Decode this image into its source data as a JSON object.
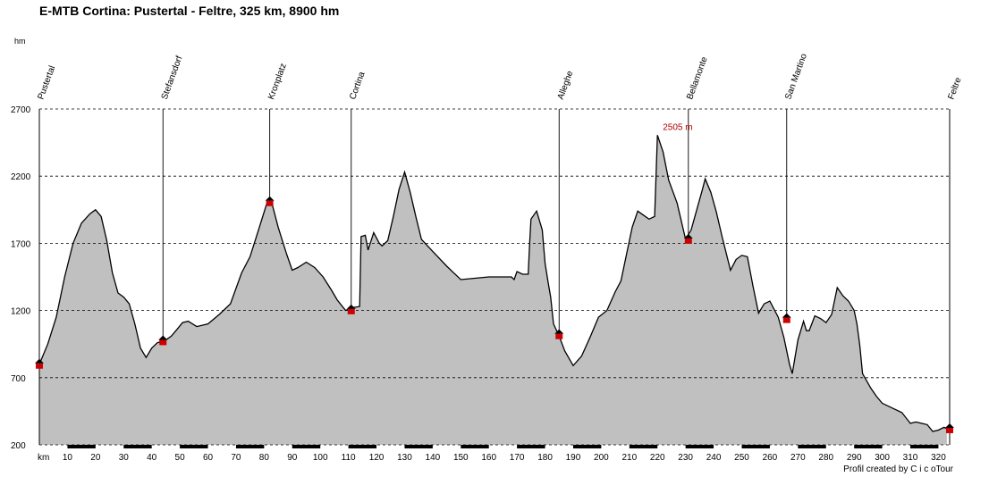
{
  "title": "E-MTB Cortina: Pustertal - Feltre, 325 km, 8900 hm",
  "credit": "Profil created by C i c oTour",
  "peak_label": "2505 m",
  "colors": {
    "fill": "#c0c0c0",
    "line": "#000000",
    "marker": "#cc0000",
    "peak_text": "#aa0000",
    "grid": "#000000"
  },
  "chart_data": {
    "type": "area",
    "title": "E-MTB Cortina: Pustertal - Feltre, 325 km, 8900 hm",
    "xlabel": "km",
    "ylabel": "hm",
    "xlim": [
      0,
      324
    ],
    "ylim": [
      200,
      2700
    ],
    "yticks": [
      200,
      700,
      1200,
      1700,
      2200,
      2700
    ],
    "xticks": [
      10,
      20,
      30,
      40,
      50,
      60,
      70,
      80,
      90,
      100,
      110,
      120,
      130,
      140,
      150,
      160,
      170,
      180,
      190,
      200,
      210,
      220,
      230,
      240,
      250,
      260,
      270,
      280,
      290,
      300,
      310,
      320
    ],
    "grid": "horizontal dashed",
    "profile": [
      [
        0,
        800
      ],
      [
        3,
        950
      ],
      [
        6,
        1150
      ],
      [
        9,
        1450
      ],
      [
        12,
        1700
      ],
      [
        15,
        1850
      ],
      [
        18,
        1920
      ],
      [
        20,
        1950
      ],
      [
        22,
        1900
      ],
      [
        24,
        1720
      ],
      [
        26,
        1480
      ],
      [
        28,
        1330
      ],
      [
        30,
        1300
      ],
      [
        32,
        1250
      ],
      [
        34,
        1100
      ],
      [
        36,
        920
      ],
      [
        38,
        850
      ],
      [
        40,
        920
      ],
      [
        42,
        960
      ],
      [
        45,
        980
      ],
      [
        47,
        1010
      ],
      [
        49,
        1060
      ],
      [
        51,
        1110
      ],
      [
        53,
        1120
      ],
      [
        56,
        1080
      ],
      [
        60,
        1100
      ],
      [
        64,
        1170
      ],
      [
        68,
        1250
      ],
      [
        72,
        1480
      ],
      [
        75,
        1600
      ],
      [
        78,
        1800
      ],
      [
        81,
        2000
      ],
      [
        83,
        1980
      ],
      [
        85,
        1820
      ],
      [
        88,
        1620
      ],
      [
        90,
        1500
      ],
      [
        92,
        1520
      ],
      [
        95,
        1560
      ],
      [
        98,
        1520
      ],
      [
        101,
        1450
      ],
      [
        104,
        1350
      ],
      [
        106,
        1280
      ],
      [
        109,
        1200
      ],
      [
        111,
        1220
      ],
      [
        114,
        1230
      ],
      [
        114.5,
        1750
      ],
      [
        116,
        1760
      ],
      [
        117,
        1650
      ],
      [
        119,
        1780
      ],
      [
        121,
        1700
      ],
      [
        122,
        1680
      ],
      [
        124,
        1720
      ],
      [
        126,
        1900
      ],
      [
        128,
        2100
      ],
      [
        130,
        2230
      ],
      [
        132,
        2080
      ],
      [
        134,
        1900
      ],
      [
        136,
        1730
      ],
      [
        140,
        1640
      ],
      [
        145,
        1530
      ],
      [
        150,
        1430
      ],
      [
        155,
        1440
      ],
      [
        160,
        1450
      ],
      [
        168,
        1450
      ],
      [
        169,
        1430
      ],
      [
        170,
        1490
      ],
      [
        172,
        1470
      ],
      [
        174,
        1470
      ],
      [
        174.5,
        1700
      ],
      [
        175,
        1880
      ],
      [
        177,
        1940
      ],
      [
        179,
        1800
      ],
      [
        180,
        1550
      ],
      [
        181,
        1420
      ],
      [
        182,
        1300
      ],
      [
        183,
        1100
      ],
      [
        185,
        1010
      ],
      [
        187,
        900
      ],
      [
        190,
        790
      ],
      [
        193,
        860
      ],
      [
        196,
        1000
      ],
      [
        199,
        1150
      ],
      [
        202,
        1200
      ],
      [
        205,
        1340
      ],
      [
        207,
        1420
      ],
      [
        209,
        1620
      ],
      [
        211,
        1820
      ],
      [
        213,
        1940
      ],
      [
        215,
        1910
      ],
      [
        217,
        1880
      ],
      [
        219,
        1900
      ],
      [
        220,
        2505
      ],
      [
        222,
        2380
      ],
      [
        224,
        2170
      ],
      [
        227,
        2000
      ],
      [
        230,
        1730
      ],
      [
        232,
        1800
      ],
      [
        234,
        1950
      ],
      [
        236,
        2100
      ],
      [
        237,
        2180
      ],
      [
        239,
        2080
      ],
      [
        241,
        1930
      ],
      [
        243,
        1750
      ],
      [
        246,
        1500
      ],
      [
        248,
        1580
      ],
      [
        250,
        1610
      ],
      [
        252,
        1600
      ],
      [
        254,
        1380
      ],
      [
        256,
        1180
      ],
      [
        258,
        1250
      ],
      [
        260,
        1270
      ],
      [
        263,
        1150
      ],
      [
        265,
        1000
      ],
      [
        267,
        800
      ],
      [
        268,
        730
      ],
      [
        270,
        980
      ],
      [
        272,
        1120
      ],
      [
        273,
        1050
      ],
      [
        274,
        1050
      ],
      [
        276,
        1160
      ],
      [
        278,
        1140
      ],
      [
        280,
        1110
      ],
      [
        282,
        1170
      ],
      [
        284,
        1370
      ],
      [
        286,
        1310
      ],
      [
        288,
        1270
      ],
      [
        290,
        1200
      ],
      [
        291,
        1100
      ],
      [
        292,
        940
      ],
      [
        293,
        730
      ],
      [
        296,
        620
      ],
      [
        298,
        560
      ],
      [
        300,
        510
      ],
      [
        304,
        470
      ],
      [
        307,
        440
      ],
      [
        310,
        360
      ],
      [
        312,
        370
      ],
      [
        314,
        360
      ],
      [
        316,
        350
      ],
      [
        318,
        300
      ],
      [
        320,
        310
      ],
      [
        322,
        330
      ],
      [
        323,
        320
      ]
    ],
    "waypoints": [
      {
        "name": "Pustertal",
        "km": 0,
        "elev": 800
      },
      {
        "name": "Stefansdorf",
        "km": 44,
        "elev": 975
      },
      {
        "name": "Kronplatz",
        "km": 82,
        "elev": 2010
      },
      {
        "name": "Cortina",
        "km": 111,
        "elev": 1205
      },
      {
        "name": "Alleghe",
        "km": 185,
        "elev": 1020
      },
      {
        "name": "Bellamonte",
        "km": 231,
        "elev": 1730
      },
      {
        "name": "San Martino",
        "km": 266,
        "elev": 1140
      },
      {
        "name": "Feltre",
        "km": 324,
        "elev": 320
      }
    ],
    "peak": {
      "km": 220,
      "elev": 2505,
      "label": "2505 m"
    }
  }
}
